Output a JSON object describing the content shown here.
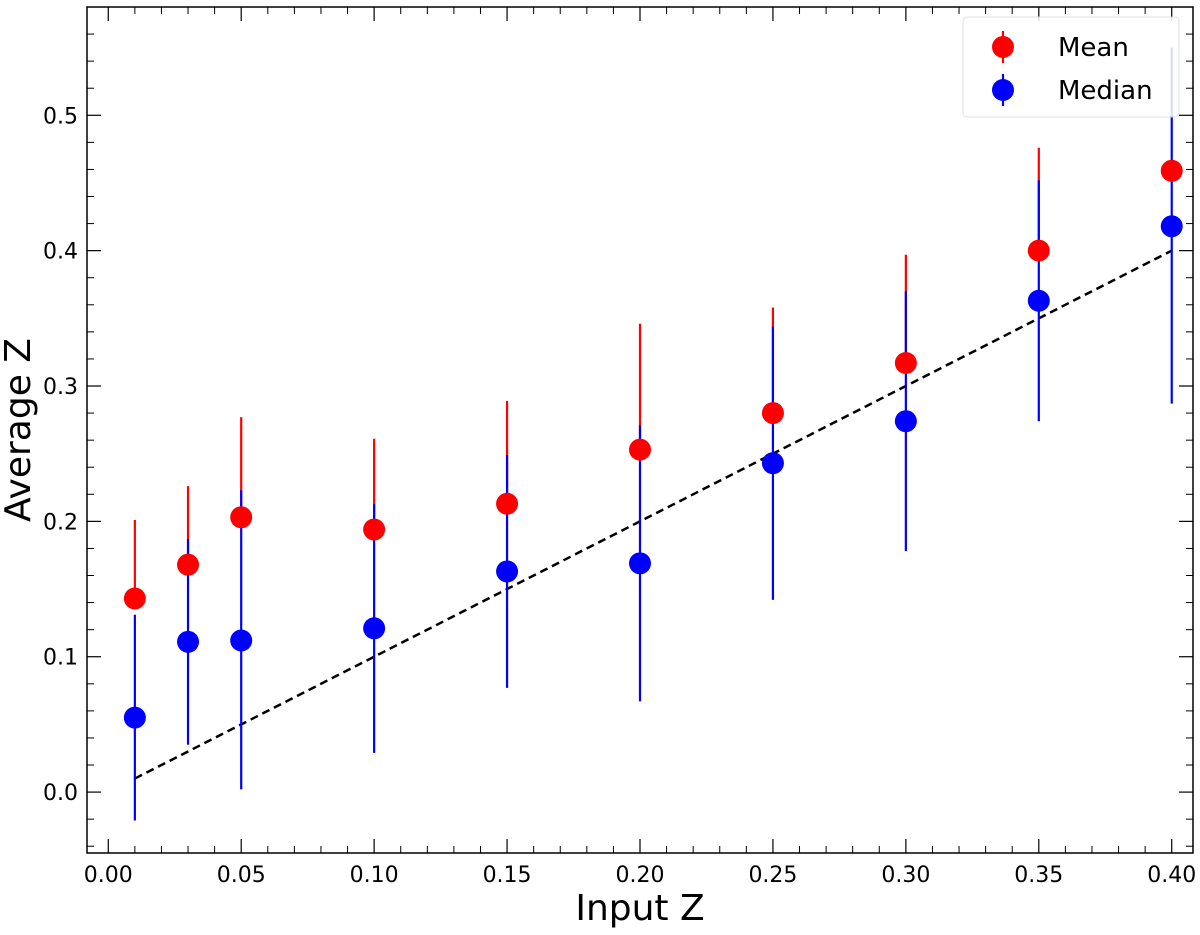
{
  "chart_data": {
    "type": "scatter",
    "xlabel": "Input Z",
    "ylabel": "Average Z",
    "xlim": [
      -0.008,
      0.408
    ],
    "ylim": [
      -0.045,
      0.58
    ],
    "xticks": [
      "0.00",
      "0.05",
      "0.10",
      "0.15",
      "0.20",
      "0.25",
      "0.30",
      "0.35",
      "0.40"
    ],
    "yticks": [
      "0.0",
      "0.1",
      "0.2",
      "0.3",
      "0.4",
      "0.5"
    ],
    "x": [
      0.01,
      0.03,
      0.05,
      0.1,
      0.15,
      0.2,
      0.25,
      0.3,
      0.35,
      0.4
    ],
    "series": [
      {
        "name": "Mean",
        "color": "#ff0000",
        "values": [
          0.143,
          0.168,
          0.203,
          0.194,
          0.213,
          0.253,
          0.28,
          0.317,
          0.4,
          0.459
        ],
        "err_low": [
          0.143,
          0.168,
          0.203,
          0.194,
          0.213,
          0.253,
          0.28,
          0.317,
          0.4,
          0.459
        ],
        "err_high": [
          0.201,
          0.226,
          0.277,
          0.261,
          0.289,
          0.346,
          0.358,
          0.397,
          0.476,
          0.459
        ]
      },
      {
        "name": "Median",
        "color": "#0000ff",
        "values": [
          0.055,
          0.111,
          0.112,
          0.121,
          0.163,
          0.169,
          0.243,
          0.274,
          0.363,
          0.418
        ],
        "err_low": [
          -0.021,
          0.035,
          0.002,
          0.029,
          0.077,
          0.067,
          0.142,
          0.178,
          0.274,
          0.287
        ],
        "err_high": [
          0.131,
          0.187,
          0.223,
          0.213,
          0.249,
          0.271,
          0.344,
          0.37,
          0.452,
          0.55
        ]
      }
    ],
    "reference_line": {
      "style": "dashed",
      "color": "#000000",
      "x": [
        0.01,
        0.4
      ],
      "y": [
        0.01,
        0.4
      ]
    },
    "legend": {
      "position": "top-right"
    },
    "grid": false
  }
}
